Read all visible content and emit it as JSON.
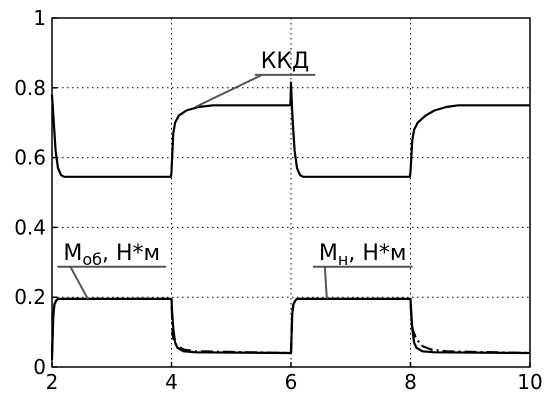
{
  "chart_data": {
    "type": "line",
    "title": "",
    "xlabel": "",
    "ylabel": "",
    "xlim": [
      2,
      10
    ],
    "ylim": [
      0,
      1
    ],
    "x_ticks": [
      "2",
      "4",
      "6",
      "8",
      "10"
    ],
    "y_ticks": [
      "0",
      "0.2",
      "0.4",
      "0.6",
      "0.8",
      "1"
    ],
    "grid": true,
    "series": [
      {
        "name": "ККД",
        "style": "solid",
        "color": "#000000",
        "points": [
          [
            2.0,
            0.78
          ],
          [
            2.03,
            0.7
          ],
          [
            2.06,
            0.62
          ],
          [
            2.1,
            0.57
          ],
          [
            2.15,
            0.55
          ],
          [
            2.2,
            0.545
          ],
          [
            3.99,
            0.545
          ],
          [
            4.0,
            0.56
          ],
          [
            4.03,
            0.67
          ],
          [
            4.06,
            0.7
          ],
          [
            4.12,
            0.72
          ],
          [
            4.25,
            0.735
          ],
          [
            4.45,
            0.745
          ],
          [
            4.7,
            0.75
          ],
          [
            5.99,
            0.75
          ],
          [
            6.0,
            0.815
          ],
          [
            6.01,
            0.77
          ],
          [
            6.03,
            0.7
          ],
          [
            6.06,
            0.62
          ],
          [
            6.1,
            0.57
          ],
          [
            6.15,
            0.55
          ],
          [
            6.2,
            0.545
          ],
          [
            7.99,
            0.545
          ],
          [
            8.0,
            0.56
          ],
          [
            8.03,
            0.65
          ],
          [
            8.06,
            0.68
          ],
          [
            8.12,
            0.7
          ],
          [
            8.25,
            0.72
          ],
          [
            8.4,
            0.735
          ],
          [
            8.6,
            0.745
          ],
          [
            8.8,
            0.75
          ],
          [
            10.0,
            0.75
          ]
        ]
      },
      {
        "name": "Мн, Н*м",
        "style": "dashdot",
        "color": "#000000",
        "points": [
          [
            2.0,
            0.04
          ],
          [
            2.02,
            0.15
          ],
          [
            2.04,
            0.18
          ],
          [
            2.07,
            0.19
          ],
          [
            2.1,
            0.195
          ],
          [
            4.0,
            0.195
          ],
          [
            4.02,
            0.09
          ],
          [
            4.05,
            0.07
          ],
          [
            4.1,
            0.06
          ],
          [
            4.2,
            0.05
          ],
          [
            4.4,
            0.045
          ],
          [
            5.99,
            0.04
          ],
          [
            6.0,
            0.04
          ],
          [
            6.02,
            0.15
          ],
          [
            6.04,
            0.18
          ],
          [
            6.07,
            0.19
          ],
          [
            6.1,
            0.195
          ],
          [
            8.0,
            0.195
          ],
          [
            8.02,
            0.12
          ],
          [
            8.05,
            0.1
          ],
          [
            8.1,
            0.08
          ],
          [
            8.2,
            0.06
          ],
          [
            8.35,
            0.05
          ],
          [
            8.6,
            0.045
          ],
          [
            9.99,
            0.04
          ],
          [
            10.0,
            0.04
          ]
        ]
      },
      {
        "name": "Моб, Н*м",
        "style": "solid",
        "color": "#000000",
        "points": [
          [
            2.0,
            0.02
          ],
          [
            2.02,
            0.14
          ],
          [
            2.04,
            0.18
          ],
          [
            2.07,
            0.19
          ],
          [
            2.1,
            0.195
          ],
          [
            4.0,
            0.195
          ],
          [
            4.01,
            0.16
          ],
          [
            4.03,
            0.11
          ],
          [
            4.06,
            0.07
          ],
          [
            4.1,
            0.055
          ],
          [
            4.2,
            0.045
          ],
          [
            4.4,
            0.042
          ],
          [
            5.99,
            0.04
          ],
          [
            6.0,
            0.04
          ],
          [
            6.02,
            0.15
          ],
          [
            6.04,
            0.18
          ],
          [
            6.07,
            0.19
          ],
          [
            6.1,
            0.195
          ],
          [
            8.0,
            0.195
          ],
          [
            8.01,
            0.16
          ],
          [
            8.03,
            0.11
          ],
          [
            8.06,
            0.07
          ],
          [
            8.1,
            0.055
          ],
          [
            8.2,
            0.045
          ],
          [
            8.4,
            0.042
          ],
          [
            9.99,
            0.04
          ],
          [
            10.0,
            0.04
          ]
        ]
      }
    ],
    "annotations": [
      {
        "main": "ККД",
        "sub": "",
        "suffix": "",
        "anchor": [
          4.4,
          0.745
        ],
        "text_at": [
          5.9,
          0.84
        ]
      },
      {
        "main": "М",
        "sub": "об",
        "suffix": ", Н*м",
        "anchor": [
          2.6,
          0.195
        ],
        "text_at": [
          3.0,
          0.29
        ]
      },
      {
        "main": "М",
        "sub": "н",
        "suffix": ", Н*м",
        "anchor": [
          6.6,
          0.195
        ],
        "text_at": [
          7.2,
          0.29
        ]
      }
    ]
  }
}
